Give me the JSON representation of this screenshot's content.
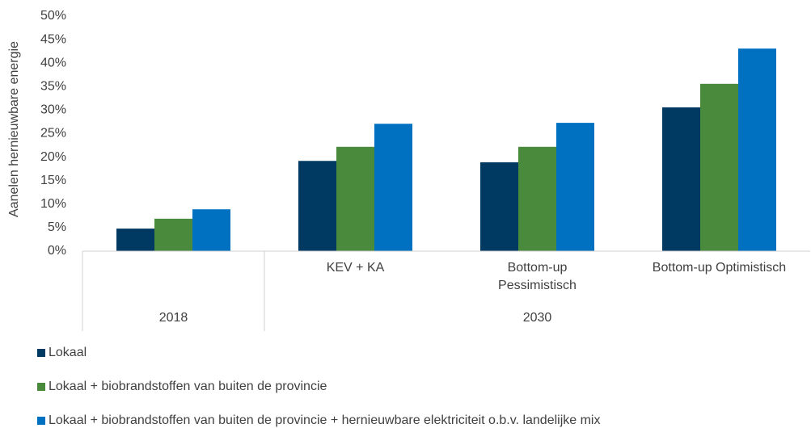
{
  "chart_data": {
    "type": "bar",
    "y_axis_label": "Aanelen hernieuwbare energie",
    "categories": [
      null,
      "KEV + KA",
      "Bottom-up\nPessimistisch",
      "Bottom-up Optimistisch"
    ],
    "category_groups": [
      {
        "label": "2018",
        "span": 1
      },
      {
        "label": "2030",
        "span": 3
      }
    ],
    "series": [
      {
        "name": "Lokaal",
        "color": "#003a63",
        "values": [
          4.8,
          19.2,
          18.9,
          30.6
        ]
      },
      {
        "name": "Lokaal + biobrandstoffen van buiten de provincie",
        "color": "#4a8a3c",
        "values": [
          6.9,
          22.2,
          22.2,
          35.6
        ]
      },
      {
        "name": "Lokaal + biobrandstoffen van buiten de provincie + hernieuwbare elektriciteit o.b.v. landelijke mix",
        "color": "#0070c0",
        "values": [
          8.9,
          27.1,
          27.3,
          43.1
        ]
      }
    ],
    "ylim": [
      0,
      50
    ],
    "yticks": [
      {
        "value": 0,
        "label": "0%"
      },
      {
        "value": 5,
        "label": "5%"
      },
      {
        "value": 10,
        "label": "10%"
      },
      {
        "value": 15,
        "label": "15%"
      },
      {
        "value": 20,
        "label": "20%"
      },
      {
        "value": 25,
        "label": "25%"
      },
      {
        "value": 30,
        "label": "30%"
      },
      {
        "value": 35,
        "label": "35%"
      },
      {
        "value": 40,
        "label": "40%"
      },
      {
        "value": 45,
        "label": "45%"
      },
      {
        "value": 50,
        "label": "50%"
      }
    ],
    "legend": "bottom-left"
  }
}
